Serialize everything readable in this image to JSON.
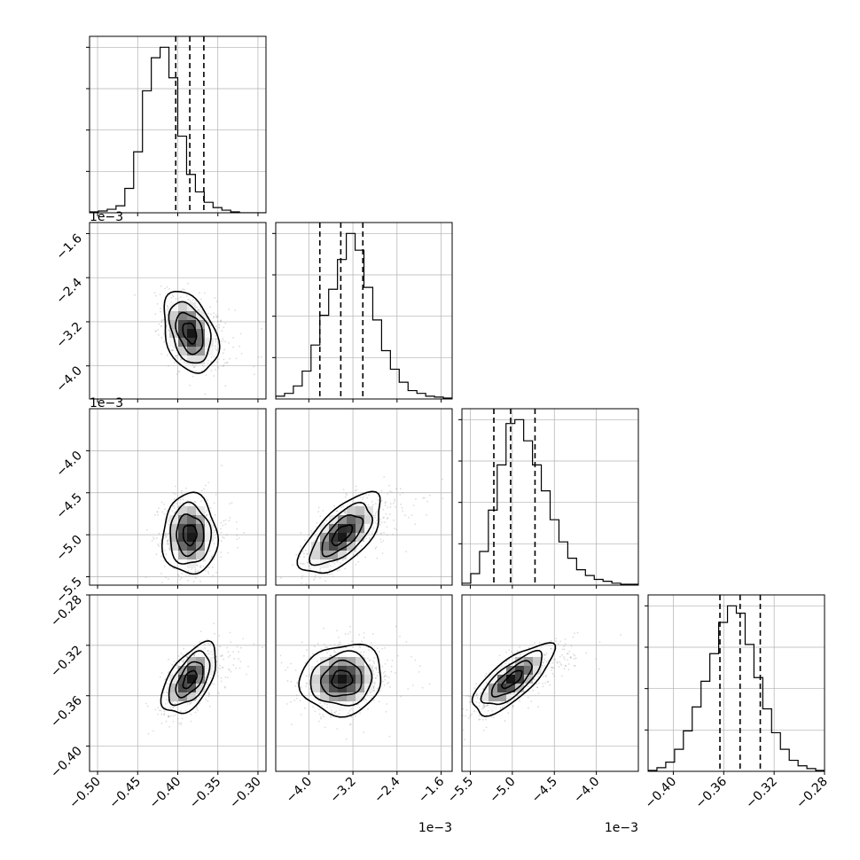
{
  "chart_data": {
    "type": "corner",
    "grid": true,
    "parameters": [
      {
        "ticks": [
          -0.5,
          -0.45,
          -0.4,
          -0.35,
          -0.3
        ],
        "tick_labels": [
          "−0.50",
          "−0.45",
          "−0.40",
          "−0.35",
          "−0.30"
        ],
        "range": [
          -0.51,
          -0.29
        ],
        "exponent_label": "",
        "mean": -0.385,
        "std": 0.017,
        "quantiles": [
          -0.4025,
          -0.385,
          -0.3675
        ]
      },
      {
        "ticks": [
          -4.0,
          -3.2,
          -2.4,
          -1.6
        ],
        "tick_labels": [
          "−4.0",
          "−3.2",
          "−2.4",
          "−1.6"
        ],
        "range": [
          -4.6,
          -1.4
        ],
        "exponent_label": "1e−3",
        "mean": -3.4,
        "std": 0.37,
        "quantiles": [
          -3.8,
          -3.42,
          -3.02
        ]
      },
      {
        "ticks": [
          -5.5,
          -5.0,
          -4.5,
          -4.0
        ],
        "tick_labels": [
          "−5.5",
          "−5.0",
          "−4.5",
          "−4.0"
        ],
        "range": [
          -5.6,
          -3.5
        ],
        "exponent_label": "1e−3",
        "mean": -5.0,
        "std": 0.24,
        "quantiles": [
          -5.22,
          -5.02,
          -4.73
        ]
      },
      {
        "ticks": [
          -0.4,
          -0.36,
          -0.32,
          -0.28
        ],
        "tick_labels": [
          "−0.40",
          "−0.36",
          "−0.32",
          "−0.28"
        ],
        "range": [
          -0.42,
          -0.28
        ],
        "exponent_label": "",
        "mean": -0.347,
        "std": 0.014,
        "quantiles": [
          -0.363,
          -0.347,
          -0.331
        ]
      }
    ],
    "histograms": [
      {
        "counts": [
          1,
          2,
          4,
          8,
          28,
          70,
          140,
          178,
          190,
          155,
          88,
          44,
          24,
          12,
          6,
          3,
          1,
          0,
          0,
          0
        ]
      },
      {
        "counts": [
          3,
          6,
          14,
          30,
          58,
          90,
          118,
          150,
          178,
          160,
          120,
          85,
          52,
          32,
          18,
          9,
          6,
          3,
          2,
          1
        ]
      },
      {
        "counts": [
          2,
          12,
          35,
          78,
          125,
          168,
          172,
          150,
          125,
          98,
          68,
          45,
          28,
          16,
          10,
          6,
          4,
          2,
          1,
          1
        ]
      },
      {
        "counts": [
          1,
          4,
          10,
          24,
          44,
          70,
          98,
          128,
          162,
          180,
          172,
          138,
          102,
          68,
          42,
          24,
          12,
          6,
          3,
          1
        ]
      }
    ],
    "pairs": [
      {
        "x_param": 0,
        "y_param": 1,
        "correlation": -0.35
      },
      {
        "x_param": 0,
        "y_param": 2,
        "correlation": 0.0
      },
      {
        "x_param": 1,
        "y_param": 2,
        "correlation": 0.65
      },
      {
        "x_param": 0,
        "y_param": 3,
        "correlation": 0.55
      },
      {
        "x_param": 1,
        "y_param": 3,
        "correlation": 0.1
      },
      {
        "x_param": 2,
        "y_param": 3,
        "correlation": 0.75
      }
    ],
    "contour_levels_sigma": [
      0.5,
      1.0,
      1.5,
      2.0
    ],
    "colors": {
      "line": "#000000",
      "points": "#9a9a9a",
      "grid": "#b0b0b0"
    }
  }
}
